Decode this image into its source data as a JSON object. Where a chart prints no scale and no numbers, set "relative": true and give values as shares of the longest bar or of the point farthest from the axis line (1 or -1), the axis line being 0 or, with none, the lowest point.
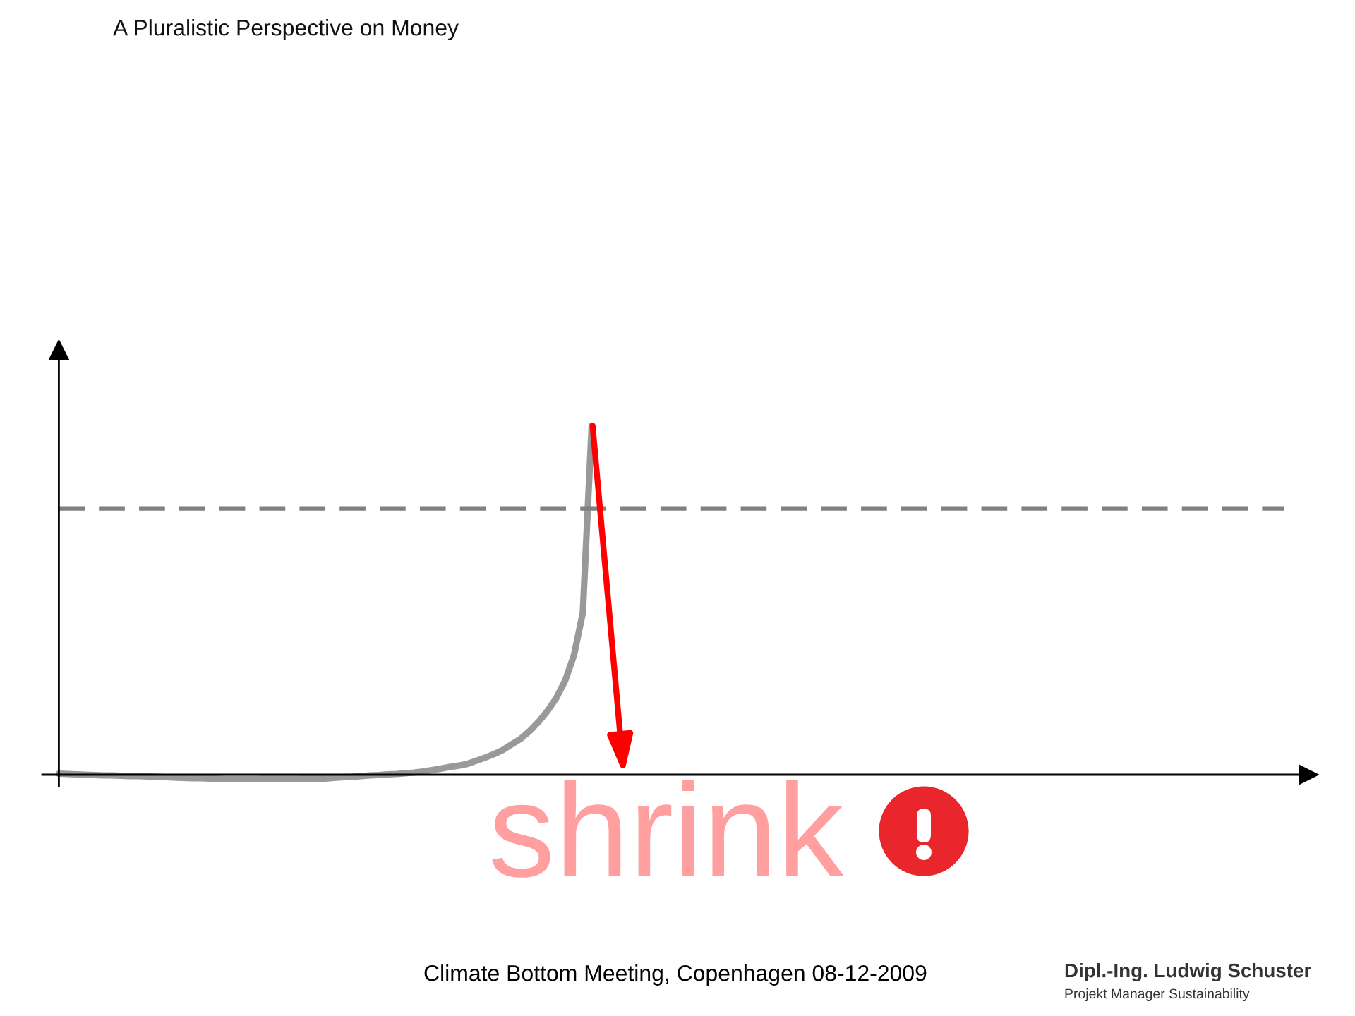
{
  "chart_data": {
    "type": "line",
    "title": "A Pluralistic Perspective on Money",
    "relative": true,
    "categories": [
      null,
      null,
      null,
      null,
      null,
      null,
      null,
      null,
      null,
      null,
      null,
      null,
      null,
      null,
      null,
      null,
      null,
      null,
      null,
      null,
      null,
      null,
      null,
      null,
      null,
      null,
      null,
      null,
      null,
      null,
      null,
      null,
      null,
      null,
      null,
      null,
      null,
      null,
      null,
      null,
      null,
      null,
      null,
      null,
      null,
      null,
      null,
      null,
      null,
      null,
      null,
      null,
      null,
      null,
      null,
      null,
      null,
      null,
      null,
      null,
      null,
      null,
      null,
      null,
      null,
      null,
      null,
      null,
      null,
      null,
      null,
      null,
      null,
      null,
      null,
      null,
      null,
      null,
      null,
      null,
      null,
      null,
      null,
      null,
      null,
      null,
      null,
      null,
      null,
      null,
      null,
      null,
      null,
      null,
      null,
      null,
      null,
      null,
      null,
      null,
      null,
      null,
      null,
      null,
      null,
      null,
      null,
      null,
      null,
      null,
      null,
      null,
      null,
      null,
      null,
      null,
      null,
      null,
      null,
      null,
      null,
      null,
      null,
      null,
      null,
      null,
      null,
      null,
      null,
      null,
      null,
      null,
      null,
      null,
      null,
      null,
      null,
      null,
      null
    ],
    "series": [
      {
        "color": "#999999",
        "values": [
          0.003,
          0.002,
          0.001,
          0.0,
          -0.001,
          -0.002,
          -0.002,
          -0.003,
          -0.004,
          -0.004,
          -0.005,
          -0.006,
          -0.007,
          -0.008,
          -0.009,
          -0.01,
          -0.01,
          -0.011,
          -0.012,
          -0.013,
          -0.013,
          -0.013,
          -0.013,
          -0.012,
          -0.012,
          -0.012,
          -0.012,
          -0.012,
          -0.011,
          -0.011,
          -0.011,
          -0.009,
          -0.007,
          -0.006,
          -0.004,
          -0.002,
          -0.001,
          0.001,
          0.002,
          0.004,
          0.006,
          0.009,
          0.013,
          0.017,
          0.022,
          0.026,
          0.031,
          0.04,
          0.049,
          0.059,
          0.071,
          0.087,
          0.103,
          0.125,
          0.151,
          0.182,
          0.219,
          0.269,
          0.342,
          0.464,
          1,
          null,
          null,
          null,
          null,
          null,
          null,
          null,
          null,
          null,
          null,
          null,
          null,
          null,
          null,
          null,
          null,
          null,
          null,
          null,
          null,
          null,
          null,
          null,
          null,
          null,
          null,
          null,
          null,
          null,
          null,
          null,
          null,
          null,
          null,
          null,
          null,
          null,
          null,
          null,
          null,
          null,
          null,
          null,
          null,
          null,
          null,
          null,
          null,
          null,
          null,
          null,
          null,
          null,
          null,
          null,
          null,
          null,
          null,
          null,
          null,
          null,
          null,
          null,
          null,
          null,
          null,
          null,
          null,
          null,
          null,
          null,
          null,
          null,
          null,
          null,
          null,
          null,
          null
        ]
      }
    ],
    "ref_lines": [
      {
        "axis": "y",
        "value": 0.763,
        "color": "#808080",
        "line_style": "dashed"
      }
    ],
    "annotations": [
      "shrink",
      "Climate Bottom Meeting, Copenhagen 08-12-2009",
      "Dipl.-Ing. Ludwig Schuster",
      "Projekt Manager Sustainability"
    ]
  }
}
